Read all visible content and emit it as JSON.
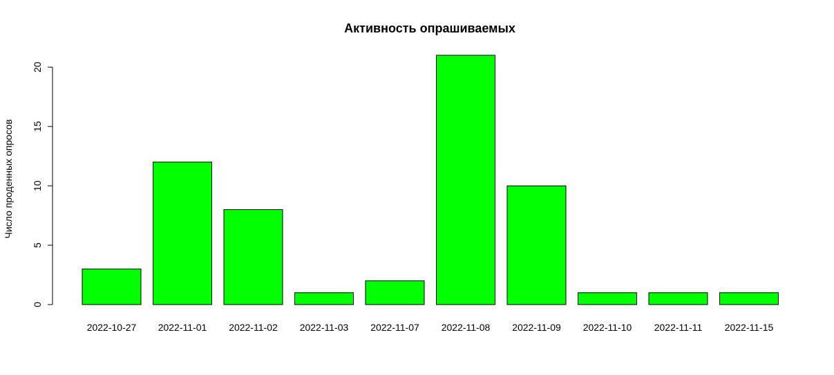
{
  "chart_data": {
    "type": "bar",
    "title": "Активность опрашиваемых",
    "xlabel": "",
    "ylabel": "Число проденных опросов",
    "categories": [
      "2022-10-27",
      "2022-11-01",
      "2022-11-02",
      "2022-11-03",
      "2022-11-07",
      "2022-11-08",
      "2022-11-09",
      "2022-11-10",
      "2022-11-11",
      "2022-11-15"
    ],
    "values": [
      3,
      12,
      8,
      1,
      2,
      21,
      10,
      1,
      1,
      1
    ],
    "ylim": [
      0,
      21
    ],
    "yticks": [
      0,
      5,
      10,
      15,
      20
    ],
    "bar_color": "#00ff00",
    "border_color": "#000000",
    "grid": false,
    "legend": "none"
  }
}
